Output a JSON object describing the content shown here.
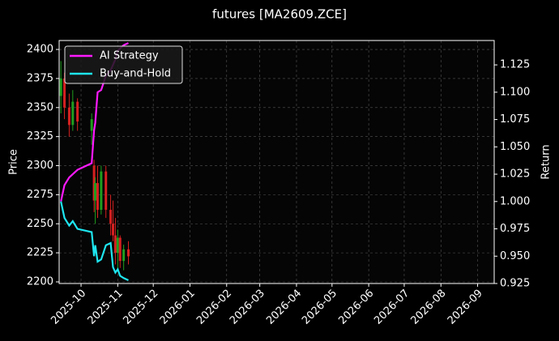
{
  "chart_data": {
    "type": "candlestick",
    "title": "futures [MA2609.ZCE]",
    "ylabel": "Price",
    "y2label": "Return",
    "x": [
      -17,
      -14,
      -10,
      -7,
      -3,
      9,
      11,
      12,
      14,
      17,
      21,
      25,
      27,
      29,
      31,
      33,
      36,
      40
    ],
    "xlim": [
      -18.5,
      349
    ],
    "xticks": [
      {
        "value": 0,
        "label": "2025-10"
      },
      {
        "value": 31,
        "label": "2025-11"
      },
      {
        "value": 61,
        "label": "2025-12"
      },
      {
        "value": 92,
        "label": "2026-01"
      },
      {
        "value": 123,
        "label": "2026-02"
      },
      {
        "value": 151,
        "label": "2026-03"
      },
      {
        "value": 182,
        "label": "2026-04"
      },
      {
        "value": 212,
        "label": "2026-05"
      },
      {
        "value": 243,
        "label": "2026-06"
      },
      {
        "value": 273,
        "label": "2026-07"
      },
      {
        "value": 304,
        "label": "2026-08"
      },
      {
        "value": 335,
        "label": "2026-09"
      }
    ],
    "ylim": [
      2198.6,
      2407.7
    ],
    "yticks": [
      2200,
      2225,
      2250,
      2275,
      2300,
      2325,
      2350,
      2375,
      2400
    ],
    "y2lim": [
      0.925,
      1.1473
    ],
    "y2ticks": [
      0.925,
      {
        "value": 0.95,
        "label": "0.950"
      },
      0.975,
      {
        "value": 1.0,
        "label": "1.000"
      },
      1.025,
      {
        "value": 1.05,
        "label": "1.050"
      },
      1.075,
      {
        "value": 1.1,
        "label": "1.100"
      },
      1.125
    ],
    "grid": true,
    "legend": "upper left",
    "candles": {
      "axis": "y",
      "up_color": "#1f9e1f",
      "down_color": "#d62020",
      "open": [
        2360,
        2375,
        2350,
        2335,
        2355,
        2330,
        2300,
        2270,
        2285,
        2262,
        2295,
        2262,
        2250,
        2240,
        2225,
        2238,
        2218,
        2228
      ],
      "high": [
        2390,
        2380,
        2362,
        2365,
        2358,
        2345,
        2305,
        2290,
        2300,
        2300,
        2300,
        2275,
        2270,
        2255,
        2245,
        2240,
        2232,
        2235
      ],
      "low": [
        2345,
        2340,
        2325,
        2330,
        2330,
        2318,
        2260,
        2250,
        2255,
        2258,
        2255,
        2240,
        2235,
        2215,
        2210,
        2212,
        2210,
        2215
      ],
      "close": [
        2375,
        2350,
        2335,
        2355,
        2338,
        2340,
        2270,
        2285,
        2262,
        2295,
        2262,
        2250,
        2240,
        2225,
        2238,
        2218,
        2228,
        2222
      ]
    },
    "series": [
      {
        "name": "AI Strategy",
        "color": "#ff1aff",
        "axis": "y2",
        "values": [
          1.0,
          1.015,
          1.022,
          1.025,
          1.029,
          1.035,
          1.065,
          1.072,
          1.1,
          1.102,
          1.115,
          1.12,
          1.125,
          1.13,
          1.138,
          1.14,
          1.143,
          1.145
        ]
      },
      {
        "name": "Buy-and-Hold",
        "color": "#1ee6f0",
        "axis": "y2",
        "values": [
          1.0,
          0.985,
          0.978,
          0.982,
          0.975,
          0.972,
          0.95,
          0.96,
          0.945,
          0.947,
          0.96,
          0.962,
          0.94,
          0.935,
          0.938,
          0.932,
          0.93,
          0.928
        ]
      }
    ]
  }
}
